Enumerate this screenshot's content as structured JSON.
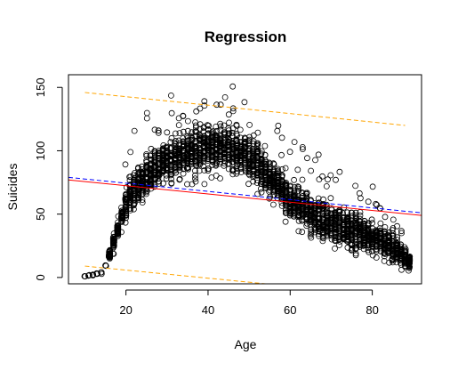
{
  "chart_data": {
    "type": "scatter",
    "title": "Regression",
    "xlabel": "Age",
    "ylabel": "Suicides",
    "xlim": [
      6,
      92
    ],
    "ylim": [
      -5,
      160
    ],
    "x_ticks": [
      20,
      40,
      60,
      80
    ],
    "y_ticks": [
      0,
      50,
      100,
      150
    ],
    "grid": false,
    "legend": "none",
    "point_marker": "open-circle",
    "point_color": "#000000",
    "scatter_profile": {
      "x": [
        10,
        12,
        14,
        15,
        16,
        17,
        18,
        19,
        20,
        22,
        25,
        28,
        30,
        33,
        36,
        40,
        43,
        46,
        49,
        52,
        55,
        58,
        60,
        63,
        66,
        70,
        74,
        78,
        82,
        85,
        87,
        89
      ],
      "y_mean": [
        1,
        2,
        4,
        10,
        18,
        28,
        38,
        48,
        58,
        70,
        80,
        88,
        93,
        97,
        100,
        102,
        103,
        101,
        97,
        90,
        80,
        70,
        62,
        55,
        48,
        42,
        38,
        34,
        30,
        24,
        18,
        12
      ],
      "y_min": [
        0,
        0,
        1,
        4,
        10,
        18,
        26,
        34,
        42,
        52,
        58,
        62,
        66,
        70,
        72,
        74,
        76,
        75,
        70,
        64,
        56,
        46,
        40,
        34,
        28,
        22,
        18,
        16,
        12,
        10,
        6,
        4
      ],
      "y_max": [
        1,
        3,
        8,
        16,
        25,
        36,
        50,
        62,
        112,
        122,
        135,
        140,
        145,
        150,
        152,
        150,
        148,
        152,
        148,
        140,
        130,
        118,
        112,
        106,
        100,
        94,
        88,
        82,
        72,
        58,
        42,
        30
      ]
    },
    "series": [
      {
        "name": "",
        "kind": "line",
        "color": "#ff0000",
        "dash": "solid",
        "x": [
          6,
          92
        ],
        "y": [
          77,
          49
        ]
      },
      {
        "name": "",
        "kind": "line",
        "color": "#0000ff",
        "dash": "dashed",
        "x": [
          6,
          92
        ],
        "y": [
          79,
          51
        ]
      },
      {
        "name": "",
        "kind": "line",
        "color": "#ffa500",
        "dash": "dashed",
        "x": [
          10,
          88
        ],
        "y": [
          146,
          120
        ]
      },
      {
        "name": "",
        "kind": "line",
        "color": "#ffa500",
        "dash": "dashed",
        "x": [
          10,
          54
        ],
        "y": [
          9,
          -5
        ]
      }
    ]
  }
}
